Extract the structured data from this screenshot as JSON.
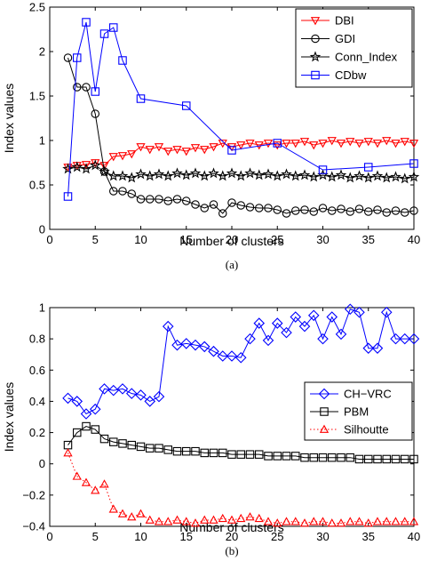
{
  "chart_data": [
    {
      "type": "line",
      "caption": "(a)",
      "xlabel": "Number of clusters",
      "ylabel": "Index values",
      "xlim": [
        0,
        40
      ],
      "ylim": [
        0,
        2.5
      ],
      "xticks": [
        "0",
        "5",
        "10",
        "15",
        "20",
        "25",
        "30",
        "35",
        "40"
      ],
      "yticks": [
        "0",
        "0.5",
        "1",
        "1.5",
        "2",
        "2.5"
      ],
      "grid": false,
      "legend_position": "top-right",
      "series": [
        {
          "name": "DBI",
          "color": "#ff0000",
          "marker": "triangle-down",
          "line": "solid",
          "x": [
            2,
            3,
            4,
            5,
            6,
            7,
            8,
            9,
            10,
            11,
            12,
            13,
            14,
            15,
            16,
            17,
            18,
            19,
            20,
            21,
            22,
            23,
            24,
            25,
            26,
            27,
            28,
            29,
            30,
            31,
            32,
            33,
            34,
            35,
            36,
            37,
            38,
            39,
            40
          ],
          "y": [
            0.7,
            0.72,
            0.73,
            0.75,
            0.72,
            0.82,
            0.83,
            0.85,
            0.93,
            0.9,
            0.93,
            0.88,
            0.9,
            0.88,
            0.92,
            0.9,
            0.93,
            0.97,
            0.93,
            0.95,
            0.97,
            0.95,
            0.97,
            0.95,
            0.97,
            0.97,
            0.99,
            0.95,
            0.97,
            1.0,
            0.97,
            0.99,
            0.97,
            0.99,
            0.97,
            1.0,
            0.97,
            0.99,
            0.97
          ]
        },
        {
          "name": "GDI",
          "color": "#000000",
          "marker": "circle",
          "line": "solid",
          "x": [
            2,
            3,
            4,
            5,
            6,
            7,
            8,
            9,
            10,
            11,
            12,
            13,
            14,
            15,
            16,
            17,
            18,
            19,
            20,
            21,
            22,
            23,
            24,
            25,
            26,
            27,
            28,
            29,
            30,
            31,
            32,
            33,
            34,
            35,
            36,
            37,
            38,
            39,
            40
          ],
          "y": [
            1.93,
            1.6,
            1.6,
            1.3,
            0.65,
            0.43,
            0.43,
            0.4,
            0.34,
            0.34,
            0.34,
            0.32,
            0.34,
            0.32,
            0.28,
            0.24,
            0.28,
            0.18,
            0.3,
            0.27,
            0.25,
            0.24,
            0.24,
            0.22,
            0.18,
            0.21,
            0.22,
            0.2,
            0.24,
            0.21,
            0.23,
            0.2,
            0.23,
            0.2,
            0.22,
            0.19,
            0.21,
            0.19,
            0.21
          ]
        },
        {
          "name": "Conn_Index",
          "color": "#000000",
          "marker": "star",
          "line": "solid",
          "x": [
            2,
            3,
            4,
            5,
            6,
            7,
            8,
            9,
            10,
            11,
            12,
            13,
            14,
            15,
            16,
            17,
            18,
            19,
            20,
            21,
            22,
            23,
            24,
            25,
            26,
            27,
            28,
            29,
            30,
            31,
            32,
            33,
            34,
            35,
            36,
            37,
            38,
            39,
            40
          ],
          "y": [
            0.68,
            0.7,
            0.68,
            0.72,
            0.65,
            0.6,
            0.6,
            0.58,
            0.62,
            0.6,
            0.62,
            0.6,
            0.63,
            0.61,
            0.63,
            0.6,
            0.63,
            0.6,
            0.63,
            0.6,
            0.63,
            0.61,
            0.62,
            0.6,
            0.62,
            0.6,
            0.61,
            0.59,
            0.61,
            0.59,
            0.61,
            0.58,
            0.6,
            0.58,
            0.6,
            0.58,
            0.59,
            0.57,
            0.59
          ]
        },
        {
          "name": "CDbw",
          "color": "#0000ff",
          "marker": "square",
          "line": "solid",
          "x": [
            2,
            3,
            4,
            5,
            6,
            7,
            8,
            10,
            15,
            20,
            25,
            30,
            35,
            40
          ],
          "y": [
            0.37,
            1.93,
            2.33,
            1.55,
            2.2,
            2.27,
            1.9,
            1.47,
            1.39,
            0.89,
            0.97,
            0.67,
            0.7,
            0.74
          ]
        }
      ]
    },
    {
      "type": "line",
      "caption": "(b)",
      "xlabel": "Number of clusters",
      "ylabel": "Index values",
      "xlim": [
        0,
        40
      ],
      "ylim": [
        -0.4,
        1
      ],
      "xticks": [
        "0",
        "5",
        "10",
        "15",
        "20",
        "25",
        "30",
        "35",
        "40"
      ],
      "yticks": [
        "−0.4",
        "−0.2",
        "0",
        "0.2",
        "0.4",
        "0.6",
        "0.8",
        "1"
      ],
      "grid": false,
      "legend_position": "center-right",
      "series": [
        {
          "name": "CH−VRC",
          "color": "#0000ff",
          "marker": "diamond",
          "line": "solid",
          "x": [
            2,
            3,
            4,
            5,
            6,
            7,
            8,
            9,
            10,
            11,
            12,
            13,
            14,
            15,
            16,
            17,
            18,
            19,
            20,
            21,
            22,
            23,
            24,
            25,
            26,
            27,
            28,
            29,
            30,
            31,
            32,
            33,
            34,
            35,
            36,
            37,
            38,
            39,
            40
          ],
          "y": [
            0.42,
            0.4,
            0.32,
            0.35,
            0.48,
            0.47,
            0.48,
            0.45,
            0.44,
            0.4,
            0.43,
            0.88,
            0.76,
            0.77,
            0.76,
            0.75,
            0.72,
            0.69,
            0.69,
            0.68,
            0.8,
            0.9,
            0.79,
            0.9,
            0.84,
            0.94,
            0.88,
            0.95,
            0.8,
            0.94,
            0.83,
            0.99,
            0.97,
            0.74,
            0.74,
            0.97,
            0.8,
            0.8,
            0.8
          ]
        },
        {
          "name": "PBM",
          "color": "#000000",
          "marker": "square",
          "line": "solid",
          "x": [
            2,
            3,
            4,
            5,
            6,
            7,
            8,
            9,
            10,
            11,
            12,
            13,
            14,
            15,
            16,
            17,
            18,
            19,
            20,
            21,
            22,
            23,
            24,
            25,
            26,
            27,
            28,
            29,
            30,
            31,
            32,
            33,
            34,
            35,
            36,
            37,
            38,
            39,
            40
          ],
          "y": [
            0.12,
            0.2,
            0.24,
            0.22,
            0.16,
            0.14,
            0.13,
            0.12,
            0.11,
            0.1,
            0.1,
            0.09,
            0.08,
            0.08,
            0.08,
            0.07,
            0.07,
            0.07,
            0.06,
            0.06,
            0.06,
            0.06,
            0.05,
            0.05,
            0.05,
            0.05,
            0.04,
            0.04,
            0.04,
            0.04,
            0.04,
            0.04,
            0.03,
            0.03,
            0.03,
            0.03,
            0.03,
            0.03,
            0.03
          ]
        },
        {
          "name": "Silhoutte",
          "color": "#ff0000",
          "marker": "triangle-up",
          "line": "dotted",
          "x": [
            2,
            3,
            4,
            5,
            6,
            7,
            8,
            9,
            10,
            11,
            12,
            13,
            14,
            15,
            16,
            17,
            18,
            19,
            20,
            21,
            22,
            23,
            24,
            25,
            26,
            27,
            28,
            29,
            30,
            31,
            32,
            33,
            34,
            35,
            36,
            37,
            38,
            39,
            40
          ],
          "y": [
            0.07,
            -0.08,
            -0.12,
            -0.17,
            -0.13,
            -0.29,
            -0.32,
            -0.34,
            -0.32,
            -0.36,
            -0.37,
            -0.37,
            -0.36,
            -0.37,
            -0.38,
            -0.36,
            -0.36,
            -0.35,
            -0.36,
            -0.35,
            -0.34,
            -0.35,
            -0.37,
            -0.38,
            -0.37,
            -0.37,
            -0.38,
            -0.37,
            -0.37,
            -0.38,
            -0.38,
            -0.37,
            -0.37,
            -0.38,
            -0.37,
            -0.37,
            -0.37,
            -0.37,
            -0.37
          ]
        }
      ]
    }
  ]
}
